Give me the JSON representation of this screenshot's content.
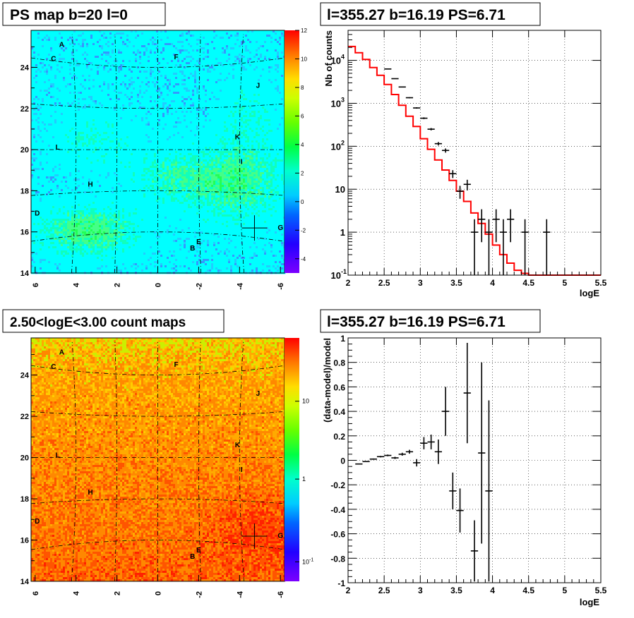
{
  "colors": {
    "model_line": "#ff0000",
    "data_marks": "#000000",
    "map_base_ps": "#00ffff",
    "map_base_counts": "#ff8c00"
  },
  "panels": {
    "top_left": {
      "title": "PS map b=20 l=0",
      "x_ticks": [
        "6",
        "4",
        "2",
        "0",
        "-2",
        "-4",
        "-6"
      ],
      "y_ticks": [
        "14",
        "16",
        "18",
        "20",
        "22",
        "24"
      ],
      "colorbar_ticks": [
        "12",
        "10",
        "8",
        "6",
        "4",
        "2",
        "0",
        "-2",
        "-4"
      ]
    },
    "top_right": {
      "title": "l=355.27 b=16.19 PS=6.71",
      "xlabel": "logE",
      "ylabel": "Nb of counts"
    },
    "bottom_left": {
      "title": "2.50<logE<3.00 count maps",
      "x_ticks": [
        "6",
        "4",
        "2",
        "0",
        "-2",
        "-4",
        "-6"
      ],
      "y_ticks": [
        "14",
        "16",
        "18",
        "20",
        "22",
        "24"
      ],
      "colorbar_ticks": [
        "10",
        "1",
        "10",
        "-1"
      ]
    },
    "bottom_right": {
      "title": "l=355.27 b=16.19 PS=6.71",
      "xlabel": "logE",
      "ylabel": "(data-model)/model"
    }
  },
  "source_labels": [
    {
      "id": "A",
      "l": 4.7,
      "b": 25.0
    },
    {
      "id": "C",
      "l": 5.1,
      "b": 24.3
    },
    {
      "id": "F",
      "l": -0.9,
      "b": 24.4
    },
    {
      "id": "J",
      "l": -4.9,
      "b": 23.0
    },
    {
      "id": "K",
      "l": -3.9,
      "b": 20.5
    },
    {
      "id": "L",
      "l": 4.9,
      "b": 20.0
    },
    {
      "id": "I",
      "l": -4.1,
      "b": 19.3
    },
    {
      "id": "H",
      "l": 3.3,
      "b": 18.2
    },
    {
      "id": "D",
      "l": 5.9,
      "b": 16.8
    },
    {
      "id": "G",
      "l": -6.0,
      "b": 16.1
    },
    {
      "id": "E",
      "l": -2.0,
      "b": 15.4
    },
    {
      "id": "B",
      "l": -1.7,
      "b": 15.1
    }
  ],
  "point_source_marker": {
    "l": -4.73,
    "b": 16.19
  },
  "chart_data": [
    {
      "type": "heatmap",
      "title": "PS map b=20 l=0",
      "xlim": [
        6.2,
        -6.2
      ],
      "ylim": [
        14,
        25.8
      ],
      "zlim": [
        -5,
        12
      ]
    },
    {
      "type": "line",
      "title": "l=355.27 b=16.19 PS=6.71",
      "xlabel": "logE",
      "ylabel": "Nb of counts",
      "xlim": [
        2,
        5.5
      ],
      "ylim": [
        0.1,
        50000
      ],
      "yscale": "log",
      "grid": true,
      "x_ticks": [
        2,
        2.5,
        3,
        3.5,
        4,
        4.5,
        5,
        5.5
      ],
      "y_ticks": [
        {
          "v": 0.1,
          "base": "10",
          "exp": "-1"
        },
        {
          "v": 1,
          "base": "1",
          "exp": ""
        },
        {
          "v": 10,
          "base": "10",
          "exp": ""
        },
        {
          "v": 100,
          "base": "10",
          "exp": "2"
        },
        {
          "v": 1000,
          "base": "10",
          "exp": "3"
        },
        {
          "v": 10000,
          "base": "10",
          "exp": "4"
        }
      ],
      "bin_width": 0.1,
      "model_bins_x": [
        2.05,
        2.15,
        2.25,
        2.35,
        2.45,
        2.55,
        2.65,
        2.75,
        2.85,
        2.95,
        3.05,
        3.15,
        3.25,
        3.35,
        3.45,
        3.55,
        3.65,
        3.75,
        3.85,
        3.95,
        4.05,
        4.15,
        4.25,
        4.35,
        4.45,
        4.55,
        4.65,
        4.75,
        4.85,
        4.95,
        5.05,
        5.15,
        5.25,
        5.35,
        5.45
      ],
      "model_values": [
        21000,
        15000,
        10500,
        6800,
        4500,
        2750,
        1600,
        900,
        500,
        290,
        150,
        85,
        48,
        28,
        16,
        9,
        5.2,
        2.8,
        1.6,
        0.9,
        0.5,
        0.3,
        0.19,
        0.13,
        0.11,
        0.1,
        0.1,
        0.1,
        0.1,
        0.1,
        0.1,
        0.1,
        0.1,
        0.1,
        0.1
      ],
      "data_points": [
        {
          "x": 2.55,
          "y": 6300
        },
        {
          "x": 2.65,
          "y": 3750
        },
        {
          "x": 2.75,
          "y": 2400
        },
        {
          "x": 2.85,
          "y": 1350
        },
        {
          "x": 2.95,
          "y": 780
        },
        {
          "x": 3.05,
          "y": 450
        },
        {
          "x": 3.15,
          "y": 250
        },
        {
          "x": 3.25,
          "y": 115
        },
        {
          "x": 3.35,
          "y": 80
        },
        {
          "x": 3.45,
          "y": 23
        },
        {
          "x": 3.55,
          "y": 9
        },
        {
          "x": 3.65,
          "y": 13
        },
        {
          "x": 3.75,
          "y": 1
        },
        {
          "x": 3.85,
          "y": 2
        },
        {
          "x": 3.95,
          "y": 1
        },
        {
          "x": 4.05,
          "y": 2
        },
        {
          "x": 4.15,
          "y": 1
        },
        {
          "x": 4.25,
          "y": 2
        },
        {
          "x": 4.45,
          "y": 1
        },
        {
          "x": 4.75,
          "y": 1
        }
      ]
    },
    {
      "type": "heatmap",
      "title": "2.50<logE<3.00 count maps",
      "xlim": [
        6.2,
        -6.2
      ],
      "ylim": [
        14,
        25.8
      ],
      "zscale": "log"
    },
    {
      "type": "scatter",
      "title": "l=355.27 b=16.19 PS=6.71",
      "xlabel": "logE",
      "ylabel": "(data-model)/model",
      "xlim": [
        2,
        5.5
      ],
      "ylim": [
        -1,
        1
      ],
      "grid": true,
      "x_ticks": [
        2,
        2.5,
        3,
        3.5,
        4,
        4.5,
        5,
        5.5
      ],
      "y_ticks": [
        -1,
        -0.8,
        -0.6,
        -0.4,
        -0.2,
        0,
        0.2,
        0.4,
        0.6,
        0.8,
        1
      ],
      "bin_width": 0.1,
      "points": [
        {
          "x": 2.15,
          "y": -0.03,
          "err": 0.003
        },
        {
          "x": 2.25,
          "y": -0.01,
          "err": 0.004
        },
        {
          "x": 2.35,
          "y": 0.01,
          "err": 0.005
        },
        {
          "x": 2.45,
          "y": 0.03,
          "err": 0.006
        },
        {
          "x": 2.55,
          "y": 0.04,
          "err": 0.007
        },
        {
          "x": 2.65,
          "y": 0.02,
          "err": 0.009
        },
        {
          "x": 2.75,
          "y": 0.05,
          "err": 0.012
        },
        {
          "x": 2.85,
          "y": 0.07,
          "err": 0.016
        },
        {
          "x": 2.95,
          "y": -0.02,
          "err": 0.03
        },
        {
          "x": 3.05,
          "y": 0.14,
          "err": 0.05
        },
        {
          "x": 3.15,
          "y": 0.15,
          "err": 0.06
        },
        {
          "x": 3.25,
          "y": 0.07,
          "err": 0.1
        },
        {
          "x": 3.35,
          "y": 0.4,
          "err": 0.2
        },
        {
          "x": 3.45,
          "y": -0.25,
          "err": 0.15
        },
        {
          "x": 3.55,
          "y": -0.41,
          "err": 0.18
        },
        {
          "x": 3.65,
          "y": 0.55,
          "err": 0.41
        },
        {
          "x": 3.75,
          "y": -0.74,
          "err": 0.25
        },
        {
          "x": 3.85,
          "y": 0.06,
          "err": 0.74
        },
        {
          "x": 3.95,
          "y": -0.25,
          "err": 0.74
        }
      ]
    }
  ]
}
